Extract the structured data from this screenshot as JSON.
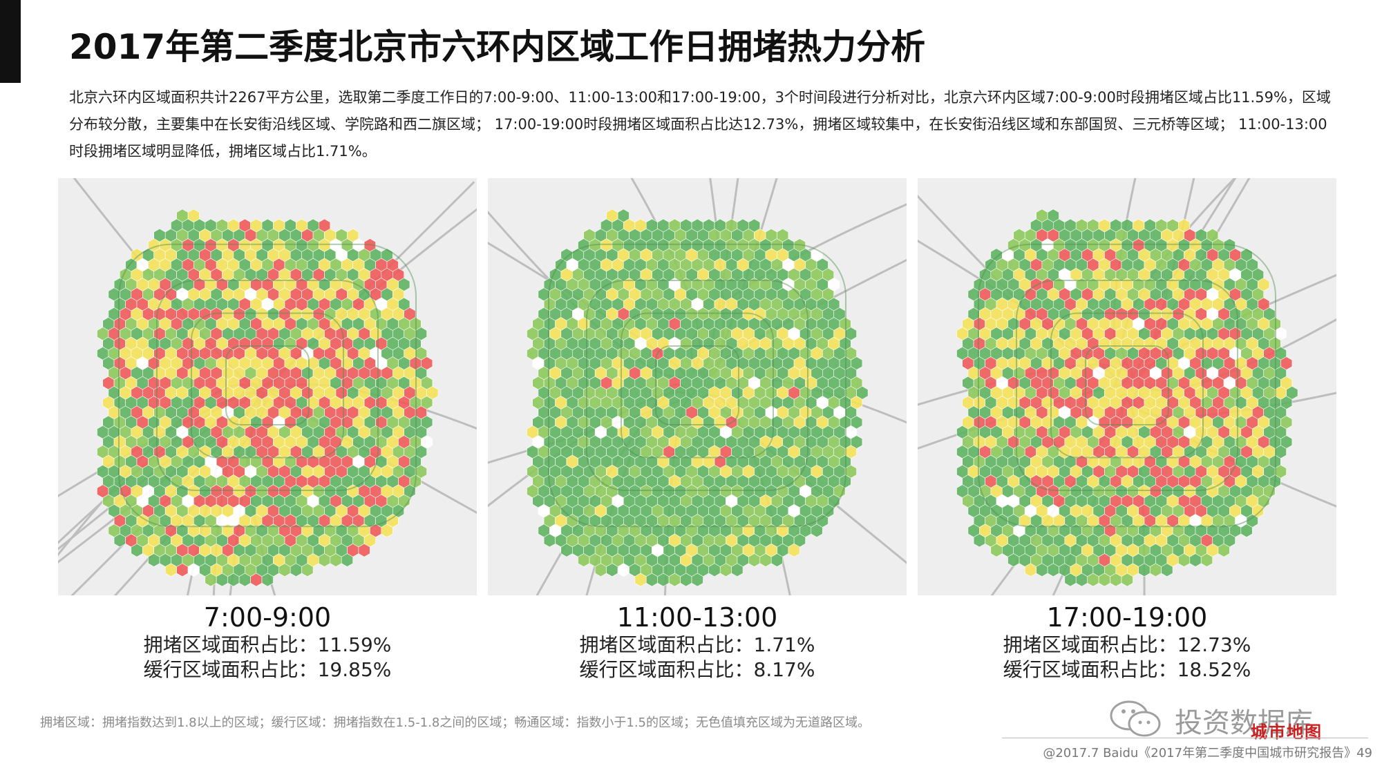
{
  "title": "2017年第二季度北京市六环内区域工作日拥堵热力分析",
  "intro": "北京六环内区域面积共计2267平方公里，选取第二季度工作日的7:00-9:00、11:00-13:00和17:00-19:00，3个时间段进行分析对比，北京六环内区域7:00-9:00时段拥堵区域占比11.59%，区域分布较分散，主要集中在长安街沿线区域、学院路和西二旗区域； 17:00-19:00时段拥堵区域面积占比达12.73%，拥堵区域较集中，在长安街沿线区域和东部国贸、三元桥等区域； 11:00-13:00时段拥堵区域明显降低，拥堵区域占比1.71%。",
  "panels": [
    {
      "time": "7:00-9:00",
      "congested": "拥堵区域面积占比：11.59%",
      "slow": "缓行区域面积占比：19.85%",
      "congested_value": 11.59,
      "slow_value": 19.85
    },
    {
      "time": "11:00-13:00",
      "congested": "拥堵区域面积占比：1.71%",
      "slow": "缓行区域面积占比：8.17%",
      "congested_value": 1.71,
      "slow_value": 8.17
    },
    {
      "time": "17:00-19:00",
      "congested": "拥堵区域面积占比：12.73%",
      "slow": "缓行区域面积占比：18.52%",
      "congested_value": 12.73,
      "slow_value": 18.52
    }
  ],
  "legend_colors": {
    "congested": "#ef5a5a",
    "slow": "#f3e25a",
    "smooth": "#5db260",
    "no_road": "#ffffff"
  },
  "footnote": "拥堵区域：拥堵指数达到1.8以上的区域；缓行区域：拥堵指数在1.5-1.8之间的区域；畅通区域：指数小于1.5的区域；无色值填充区域为无道路区域。",
  "watermark": {
    "text": "投资数据库",
    "badge": "城市地图"
  },
  "source": "@2017.7 Baidu《2017年第二季度中国城市研究报告》49"
}
